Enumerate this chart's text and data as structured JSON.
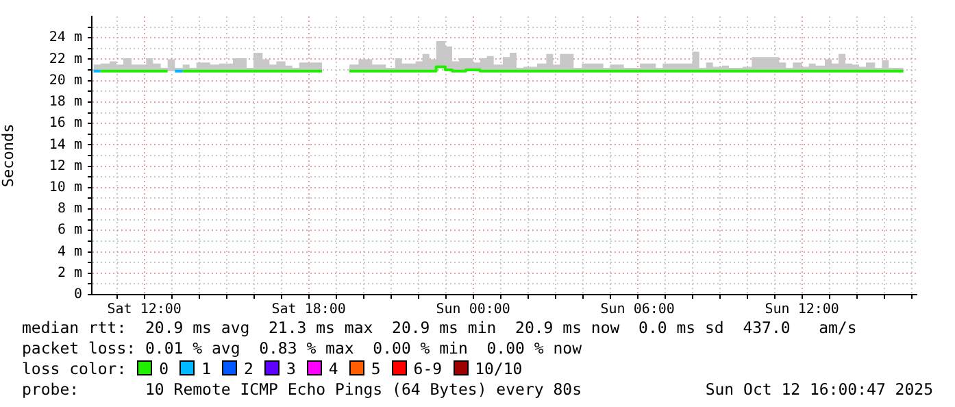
{
  "chart_data": {
    "type": "step",
    "ylabel": "Seconds",
    "legend_title": "loss color:",
    "legend": "bottom",
    "grid": true,
    "xlim": [
      "2025-10-11T10:05",
      "2025-10-12T16:11"
    ],
    "xticks": [
      {
        "value": "2025-10-11T11:00",
        "label": null
      },
      {
        "value": "2025-10-11T12:00",
        "label": "Sat 12:00"
      },
      {
        "value": "2025-10-11T13:00",
        "label": null
      },
      {
        "value": "2025-10-11T14:00",
        "label": null
      },
      {
        "value": "2025-10-11T15:00",
        "label": null
      },
      {
        "value": "2025-10-11T16:00",
        "label": null
      },
      {
        "value": "2025-10-11T17:00",
        "label": null
      },
      {
        "value": "2025-10-11T18:00",
        "label": "Sat 18:00"
      },
      {
        "value": "2025-10-11T19:00",
        "label": null
      },
      {
        "value": "2025-10-11T20:00",
        "label": null
      },
      {
        "value": "2025-10-11T21:00",
        "label": null
      },
      {
        "value": "2025-10-11T22:00",
        "label": null
      },
      {
        "value": "2025-10-11T23:00",
        "label": null
      },
      {
        "value": "2025-10-12T00:00",
        "label": "Sun 00:00"
      },
      {
        "value": "2025-10-12T01:00",
        "label": null
      },
      {
        "value": "2025-10-12T02:00",
        "label": null
      },
      {
        "value": "2025-10-12T03:00",
        "label": null
      },
      {
        "value": "2025-10-12T04:00",
        "label": null
      },
      {
        "value": "2025-10-12T05:00",
        "label": null
      },
      {
        "value": "2025-10-12T06:00",
        "label": "Sun 06:00"
      },
      {
        "value": "2025-10-12T07:00",
        "label": null
      },
      {
        "value": "2025-10-12T08:00",
        "label": null
      },
      {
        "value": "2025-10-12T09:00",
        "label": null
      },
      {
        "value": "2025-10-12T10:00",
        "label": null
      },
      {
        "value": "2025-10-12T11:00",
        "label": null
      },
      {
        "value": "2025-10-12T12:00",
        "label": "Sun 12:00"
      },
      {
        "value": "2025-10-12T13:00",
        "label": null
      },
      {
        "value": "2025-10-12T14:00",
        "label": null
      },
      {
        "value": "2025-10-12T15:00",
        "label": null
      },
      {
        "value": "2025-10-12T16:00",
        "label": null
      }
    ],
    "ylim": [
      0,
      26
    ],
    "yticks": [
      {
        "value": 0,
        "label": "0"
      },
      {
        "value": 1,
        "label": null
      },
      {
        "value": 2,
        "label": "2 m"
      },
      {
        "value": 3,
        "label": null
      },
      {
        "value": 4,
        "label": "4 m"
      },
      {
        "value": 5,
        "label": null
      },
      {
        "value": 6,
        "label": "6 m"
      },
      {
        "value": 7,
        "label": null
      },
      {
        "value": 8,
        "label": "8 m"
      },
      {
        "value": 9,
        "label": null
      },
      {
        "value": 10,
        "label": "10 m"
      },
      {
        "value": 11,
        "label": null
      },
      {
        "value": 12,
        "label": "12 m"
      },
      {
        "value": 13,
        "label": null
      },
      {
        "value": 14,
        "label": "14 m"
      },
      {
        "value": 15,
        "label": null
      },
      {
        "value": 16,
        "label": "16 m"
      },
      {
        "value": 17,
        "label": null
      },
      {
        "value": 18,
        "label": "18 m"
      },
      {
        "value": 19,
        "label": null
      },
      {
        "value": 20,
        "label": "20 m"
      },
      {
        "value": 21,
        "label": null
      },
      {
        "value": 22,
        "label": "22 m"
      },
      {
        "value": 23,
        "label": null
      },
      {
        "value": 24,
        "label": "24 m"
      },
      {
        "value": 25,
        "label": null
      }
    ],
    "x": [
      "2025-10-11T10:09",
      "2025-10-11T10:24",
      "2025-10-11T10:44",
      "2025-10-11T10:59",
      "2025-10-11T11:14",
      "2025-10-11T11:32",
      "2025-10-11T11:47",
      "2025-10-11T12:04",
      "2025-10-11T12:19",
      "2025-10-11T12:36",
      "2025-10-11T12:51",
      "2025-10-11T13:07",
      "2025-10-11T13:24",
      "2025-10-11T13:39",
      "2025-10-11T13:54",
      "2025-10-11T14:24",
      "2025-10-11T14:44",
      "2025-10-11T15:14",
      "2025-10-11T15:44",
      "2025-10-11T15:59",
      "2025-10-11T16:19",
      "2025-10-11T16:34",
      "2025-10-11T16:49",
      "2025-10-11T17:09",
      "2025-10-11T17:24",
      "2025-10-11T17:39",
      "2025-10-11T18:09",
      "2025-10-11T18:29",
      "2025-10-11T18:59",
      "2025-10-11T19:29",
      "2025-10-11T19:49",
      "2025-10-11T20:19",
      "2025-10-11T20:49",
      "2025-10-11T21:09",
      "2025-10-11T21:24",
      "2025-10-11T21:54",
      "2025-10-11T22:09",
      "2025-10-11T22:24",
      "2025-10-11T22:39",
      "2025-10-11T22:59",
      "2025-10-11T23:14",
      "2025-10-11T23:29",
      "2025-10-11T23:44",
      "2025-10-12T00:00",
      "2025-10-12T00:15",
      "2025-10-12T00:30",
      "2025-10-12T00:45",
      "2025-10-12T01:05",
      "2025-10-12T01:20",
      "2025-10-12T01:35",
      "2025-10-12T01:50",
      "2025-10-12T02:20",
      "2025-10-12T02:40",
      "2025-10-12T02:55",
      "2025-10-12T03:10",
      "2025-10-12T03:40",
      "2025-10-12T03:58",
      "2025-10-12T04:45",
      "2025-10-12T05:00",
      "2025-10-12T05:30",
      "2025-10-12T06:05",
      "2025-10-12T06:40",
      "2025-10-12T06:55",
      "2025-10-12T08:00",
      "2025-10-12T08:15",
      "2025-10-12T08:30",
      "2025-10-12T08:45",
      "2025-10-12T09:05",
      "2025-10-12T09:20",
      "2025-10-12T09:50",
      "2025-10-12T10:10",
      "2025-10-12T11:10",
      "2025-10-12T11:25",
      "2025-10-12T11:40",
      "2025-10-12T12:00",
      "2025-10-12T12:15",
      "2025-10-12T12:30",
      "2025-10-12T12:50",
      "2025-10-12T13:05",
      "2025-10-12T13:20",
      "2025-10-12T13:35",
      "2025-10-12T13:50",
      "2025-10-12T14:05",
      "2025-10-12T14:20",
      "2025-10-12T14:40",
      "2025-10-12T14:55",
      "2025-10-12T15:10",
      "2025-10-12T15:30",
      "2025-10-12T15:42"
    ],
    "series": [
      {
        "name": "0",
        "color": "#20f000",
        "values": [
          null,
          20.9,
          20.9,
          20.9,
          20.9,
          20.9,
          20.9,
          20.9,
          20.9,
          20.9,
          20.9,
          null,
          20.9,
          20.9,
          20.9,
          20.9,
          20.9,
          20.9,
          20.9,
          20.9,
          20.9,
          20.9,
          20.9,
          20.9,
          20.9,
          20.9,
          20.9,
          20.9,
          null,
          20.9,
          20.9,
          20.9,
          20.9,
          20.9,
          20.9,
          20.9,
          20.9,
          20.9,
          20.9,
          21.3,
          21.0,
          20.9,
          20.9,
          21.0,
          21.0,
          20.9,
          20.9,
          20.9,
          20.9,
          20.9,
          20.9,
          20.9,
          20.9,
          20.9,
          20.9,
          20.9,
          20.9,
          20.9,
          20.9,
          20.9,
          20.9,
          20.9,
          20.9,
          20.9,
          20.9,
          20.9,
          20.9,
          20.9,
          20.9,
          20.9,
          20.9,
          20.9,
          20.9,
          20.9,
          20.9,
          20.9,
          20.9,
          20.9,
          20.9,
          20.9,
          20.9,
          20.9,
          20.9,
          20.9,
          20.9,
          20.9,
          20.9,
          20.9,
          20.9
        ],
        "lower": [
          20.9,
          20.9,
          20.9,
          20.9,
          20.9,
          20.9,
          20.9,
          20.9,
          20.9,
          20.9,
          20.9,
          20.9,
          20.9,
          20.9,
          20.9,
          20.9,
          20.9,
          20.9,
          20.9,
          20.9,
          20.9,
          20.9,
          20.9,
          20.9,
          20.9,
          20.9,
          20.9,
          20.9,
          null,
          20.9,
          20.9,
          20.9,
          20.9,
          20.9,
          20.9,
          20.9,
          20.9,
          20.9,
          20.9,
          21.3,
          21.0,
          20.9,
          20.9,
          21.0,
          21.0,
          20.9,
          20.9,
          20.9,
          20.9,
          20.9,
          20.9,
          20.9,
          20.9,
          20.9,
          20.9,
          20.9,
          20.9,
          20.9,
          20.9,
          20.9,
          20.9,
          20.9,
          20.9,
          20.9,
          20.9,
          20.9,
          20.9,
          20.9,
          20.9,
          20.9,
          20.9,
          20.9,
          20.9,
          20.9,
          20.9,
          20.9,
          20.9,
          20.9,
          20.9,
          20.9,
          20.9,
          20.9,
          20.9,
          20.9,
          20.9,
          20.9,
          20.9,
          20.9,
          20.9
        ],
        "upper": [
          22.7,
          21.5,
          21.6,
          21.8,
          21.5,
          22.1,
          21.5,
          21.5,
          22.1,
          21.6,
          21.2,
          22.0,
          21.2,
          21.5,
          21.2,
          21.7,
          21.5,
          21.6,
          22.1,
          21.2,
          22.6,
          22.0,
          21.5,
          21.8,
          21.4,
          21.2,
          21.7,
          21.7,
          null,
          21.4,
          21.5,
          22.0,
          21.5,
          21.2,
          22.1,
          21.6,
          21.8,
          22.5,
          22.0,
          23.7,
          23.2,
          21.8,
          22.1,
          22.1,
          21.7,
          22.1,
          22.3,
          21.5,
          22.2,
          22.6,
          21.2,
          21.3,
          21.6,
          22.5,
          21.5,
          22.5,
          21.2,
          21.6,
          21.2,
          21.5,
          21.2,
          21.6,
          21.2,
          21.6,
          22.7,
          21.2,
          21.7,
          21.3,
          21.4,
          21.2,
          21.3,
          22.2,
          21.7,
          21.2,
          21.7,
          21.3,
          21.6,
          21.4,
          22.0,
          21.6,
          22.5,
          21.6,
          21.5,
          21.3,
          21.7,
          21.2,
          21.9,
          21.2,
          21.2
        ]
      },
      {
        "name": "1",
        "color": "#00b8ff",
        "x": [
          "2025-10-11T10:09",
          "2025-10-11T10:24",
          "2025-10-11T11:50",
          "2025-10-11T13:07",
          "2025-10-11T13:24"
        ],
        "values": [
          20.9,
          20.9,
          null,
          20.9,
          20.9
        ]
      },
      {
        "name": "2",
        "color": "#0059ff",
        "values": [
          null,
          null,
          null,
          null,
          null,
          null,
          null,
          null,
          null,
          null,
          null,
          null,
          null,
          null,
          null,
          null,
          null,
          null,
          null,
          null,
          null,
          null,
          null,
          null,
          null,
          null,
          null,
          null,
          null,
          null,
          null,
          null,
          null,
          null,
          null,
          null,
          null,
          null,
          null,
          null,
          null,
          null,
          null,
          null,
          null,
          null,
          null,
          null,
          null,
          null,
          null,
          null,
          null,
          null,
          null,
          null,
          null,
          null,
          null,
          null,
          null,
          null,
          null,
          null,
          null,
          null,
          null,
          null,
          null,
          null,
          null,
          null,
          null,
          null,
          null,
          null,
          null,
          null,
          null,
          null,
          null,
          null,
          null,
          null,
          null,
          null,
          null,
          null,
          null
        ]
      },
      {
        "name": "3",
        "color": "#5e00ff",
        "values": [
          null,
          null,
          null,
          null,
          null,
          null,
          null,
          null,
          null,
          null,
          null,
          null,
          null,
          null,
          null,
          null,
          null,
          null,
          null,
          null,
          null,
          null,
          null,
          null,
          null,
          null,
          null,
          null,
          null,
          null,
          null,
          null,
          null,
          null,
          null,
          null,
          null,
          null,
          null,
          null,
          null,
          null,
          null,
          null,
          null,
          null,
          null,
          null,
          null,
          null,
          null,
          null,
          null,
          null,
          null,
          null,
          null,
          null,
          null,
          null,
          null,
          null,
          null,
          null,
          null,
          null,
          null,
          null,
          null,
          null,
          null,
          null,
          null,
          null,
          null,
          null,
          null,
          null,
          null,
          null,
          null,
          null,
          null,
          null,
          null,
          null,
          null,
          null,
          null
        ]
      },
      {
        "name": "4",
        "color": "#ff00ff",
        "values": [
          null,
          null,
          null,
          null,
          null,
          null,
          null,
          null,
          null,
          null,
          null,
          null,
          null,
          null,
          null,
          null,
          null,
          null,
          null,
          null,
          null,
          null,
          null,
          null,
          null,
          null,
          null,
          null,
          null,
          null,
          null,
          null,
          null,
          null,
          null,
          null,
          null,
          null,
          null,
          null,
          null,
          null,
          null,
          null,
          null,
          null,
          null,
          null,
          null,
          null,
          null,
          null,
          null,
          null,
          null,
          null,
          null,
          null,
          null,
          null,
          null,
          null,
          null,
          null,
          null,
          null,
          null,
          null,
          null,
          null,
          null,
          null,
          null,
          null,
          null,
          null,
          null,
          null,
          null,
          null,
          null,
          null,
          null,
          null,
          null,
          null,
          null,
          null,
          null
        ]
      },
      {
        "name": "5",
        "color": "#ff5e00",
        "values": [
          null,
          null,
          null,
          null,
          null,
          null,
          null,
          null,
          null,
          null,
          null,
          null,
          null,
          null,
          null,
          null,
          null,
          null,
          null,
          null,
          null,
          null,
          null,
          null,
          null,
          null,
          null,
          null,
          null,
          null,
          null,
          null,
          null,
          null,
          null,
          null,
          null,
          null,
          null,
          null,
          null,
          null,
          null,
          null,
          null,
          null,
          null,
          null,
          null,
          null,
          null,
          null,
          null,
          null,
          null,
          null,
          null,
          null,
          null,
          null,
          null,
          null,
          null,
          null,
          null,
          null,
          null,
          null,
          null,
          null,
          null,
          null,
          null,
          null,
          null,
          null,
          null,
          null,
          null,
          null,
          null,
          null,
          null,
          null,
          null,
          null,
          null,
          null,
          null
        ]
      },
      {
        "name": "6-9",
        "color": "#ff0000",
        "values": [
          null,
          null,
          null,
          null,
          null,
          null,
          null,
          null,
          null,
          null,
          null,
          null,
          null,
          null,
          null,
          null,
          null,
          null,
          null,
          null,
          null,
          null,
          null,
          null,
          null,
          null,
          null,
          null,
          null,
          null,
          null,
          null,
          null,
          null,
          null,
          null,
          null,
          null,
          null,
          null,
          null,
          null,
          null,
          null,
          null,
          null,
          null,
          null,
          null,
          null,
          null,
          null,
          null,
          null,
          null,
          null,
          null,
          null,
          null,
          null,
          null,
          null,
          null,
          null,
          null,
          null,
          null,
          null,
          null,
          null,
          null,
          null,
          null,
          null,
          null,
          null,
          null,
          null,
          null,
          null,
          null,
          null,
          null,
          null,
          null,
          null,
          null,
          null,
          null
        ]
      },
      {
        "name": "10/10",
        "color": "#a10000",
        "values": [
          null,
          null,
          null,
          null,
          null,
          null,
          null,
          null,
          null,
          null,
          null,
          null,
          null,
          null,
          null,
          null,
          null,
          null,
          null,
          null,
          null,
          null,
          null,
          null,
          null,
          null,
          null,
          null,
          null,
          null,
          null,
          null,
          null,
          null,
          null,
          null,
          null,
          null,
          null,
          null,
          null,
          null,
          null,
          null,
          null,
          null,
          null,
          null,
          null,
          null,
          null,
          null,
          null,
          null,
          null,
          null,
          null,
          null,
          null,
          null,
          null,
          null,
          null,
          null,
          null,
          null,
          null,
          null,
          null,
          null,
          null,
          null,
          null,
          null,
          null,
          null,
          null,
          null,
          null,
          null,
          null,
          null,
          null,
          null,
          null,
          null,
          null,
          null,
          null
        ]
      }
    ],
    "annotations": [
      "median rtt:  20.9 ms avg  21.3 ms max  20.9 ms min  20.9 ms now  0.0 ms sd  437.0   am/s",
      "packet loss: 0.01 % avg  0.83 % max  0.00 % min  0.00 % now",
      "probe:       10 Remote ICMP Echo Pings (64 Bytes) every 80s",
      "Sun Oct 12 16:00:47 2025"
    ]
  }
}
